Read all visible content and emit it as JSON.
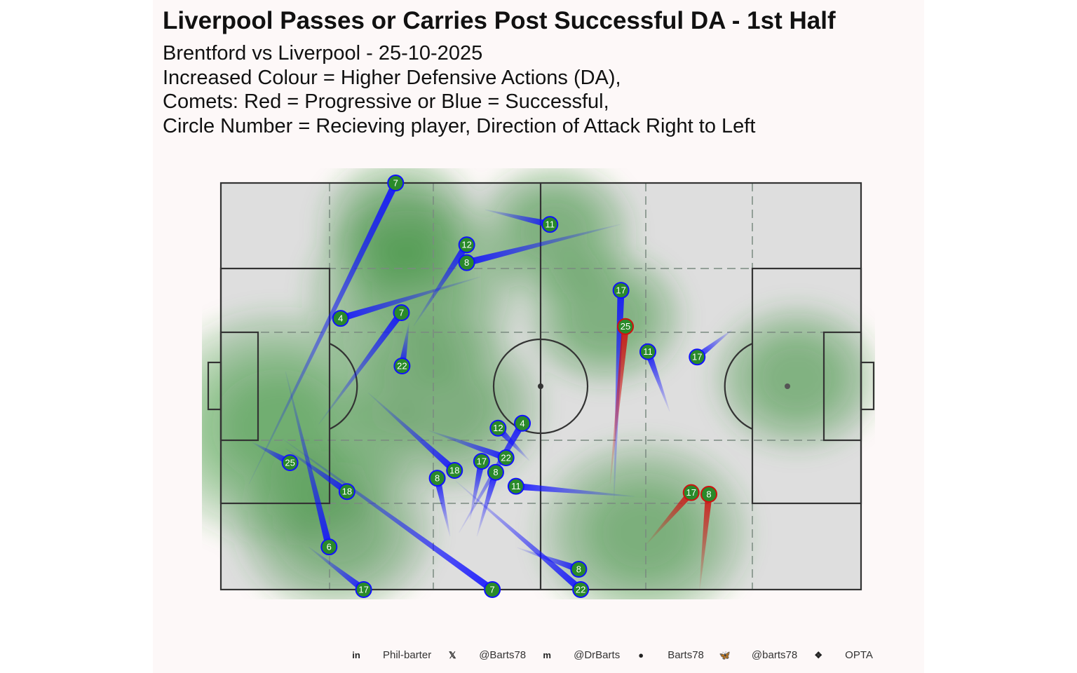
{
  "chart_data": {
    "type": "scatter",
    "title": "Liverpool Passes or Carries Post Successful DA - 1st Half",
    "subtitle": [
      "Brentford vs Liverpool - 25-10-2025",
      "Increased Colour = Higher Defensive Actions (DA),",
      "Comets: Red = Progressive or Blue = Successful,",
      "Circle Number = Recieving player, Direction of Attack Right to Left"
    ],
    "pitch": {
      "x_range": [
        0,
        100
      ],
      "y_range": [
        0,
        100
      ],
      "units": "opta"
    },
    "colors": {
      "progressive": "#d01010",
      "successful": "#1010ff",
      "density": "#2e8b2e",
      "pitch": "#dedede",
      "marker": "#2a8a2a"
    },
    "comets": [
      {
        "player": "7",
        "type": "successful",
        "start": [
          4.4,
          74
        ],
        "end": [
          27.3,
          0
        ]
      },
      {
        "player": "11",
        "type": "successful",
        "start": [
          41.3,
          6.6
        ],
        "end": [
          51.4,
          10.2
        ]
      },
      {
        "player": "12",
        "type": "successful",
        "start": [
          30.1,
          35.2
        ],
        "end": [
          38.4,
          16.7
        ]
      },
      {
        "player": "8",
        "type": "successful",
        "start": [
          62.4,
          10.2
        ],
        "end": [
          38.4,
          18.1
        ]
      },
      {
        "player": "4",
        "type": "successful",
        "start": [
          40.5,
          23.1
        ],
        "end": [
          18.7,
          33.3
        ]
      },
      {
        "player": "7",
        "type": "successful",
        "start": [
          15.3,
          59.3
        ],
        "end": [
          28.2,
          31.9
        ]
      },
      {
        "player": "22",
        "type": "successful",
        "start": [
          29.4,
          34.3
        ],
        "end": [
          28.3,
          45
        ]
      },
      {
        "player": "17",
        "type": "successful",
        "start": [
          61.4,
          78
        ],
        "end": [
          62.5,
          26.4
        ]
      },
      {
        "player": "25",
        "type": "progressive",
        "start": [
          60.8,
          74
        ],
        "end": [
          63.2,
          35.3
        ]
      },
      {
        "player": "11",
        "type": "successful",
        "start": [
          70.1,
          56.2
        ],
        "end": [
          66.7,
          41.5
        ]
      },
      {
        "player": "17",
        "type": "successful",
        "start": [
          79.8,
          36.2
        ],
        "end": [
          74.4,
          42.8
        ]
      },
      {
        "player": "22",
        "type": "successful",
        "start": [
          32.5,
          60.9
        ],
        "end": [
          44.1,
          68.1
        ]
      },
      {
        "player": "12",
        "type": "successful",
        "start": [
          48.2,
          68.3
        ],
        "end": [
          43.3,
          60.3
        ]
      },
      {
        "player": "4",
        "type": "successful",
        "start": [
          37.2,
          86
        ]
      },
      {
        "player": "17",
        "type": "successful",
        "start": [
          38.9,
          82.8
        ],
        "end": [
          41.5,
          69.3
        ]
      },
      {
        "player": "8",
        "type": "successful",
        "start": [
          40,
          86.9
        ],
        "end": [
          42.6,
          69.8
        ]
      },
      {
        "player": "18",
        "type": "successful",
        "start": [
          23,
          51.6
        ],
        "end": [
          36.5,
          70.7
        ]
      },
      {
        "player": "22",
        "type": "successful",
        "start": [
          36.7,
          73.3
        ],
        "end": [
          56.2,
          100
        ]
      },
      {
        "player": "8",
        "type": "successful",
        "start": [
          35.8,
          86.9
        ],
        "end": [
          33.8,
          72.6
        ]
      },
      {
        "player": "11",
        "type": "successful",
        "start": [
          64.6,
          77.1
        ],
        "end": [
          46.1,
          74.6
        ]
      },
      {
        "player": "8",
        "type": "successful",
        "start": [
          46.3,
          89.7
        ],
        "end": [
          55.9,
          95
        ]
      },
      {
        "player": "17",
        "type": "progressive",
        "start": [
          66.5,
          88.8
        ],
        "end": [
          73.8,
          76.2
        ]
      },
      {
        "player": "8",
        "type": "progressive",
        "start": [
          74.8,
          99.8
        ],
        "end": [
          75.9,
          76.5
        ]
      },
      {
        "player": "25",
        "type": "successful",
        "start": [
          4.9,
          63.8
        ],
        "end": [
          10.8,
          68.8
        ]
      },
      {
        "player": "18",
        "type": "successful",
        "start": [
          10.1,
          65.3
        ],
        "end": [
          19.7,
          75.9
        ]
      },
      {
        "player": "7",
        "type": "successful",
        "start": [
          9.6,
          62.9
        ],
        "end": [
          42.4,
          100
        ]
      },
      {
        "player": "6",
        "type": "successful",
        "start": [
          10.1,
          46.4
        ],
        "end": [
          16.9,
          89.5
        ]
      },
      {
        "player": "17",
        "type": "successful",
        "start": [
          13.7,
          89.5
        ],
        "end": [
          22.3,
          100
        ]
      }
    ],
    "density_hotspots": [
      [
        9,
        60,
        1.0
      ],
      [
        30,
        27,
        0.6
      ],
      [
        66,
        86,
        0.6
      ],
      [
        90,
        48,
        0.35
      ],
      [
        60,
        33,
        0.3
      ],
      [
        28,
        10,
        0.3
      ],
      [
        52,
        12,
        0.3
      ],
      [
        35,
        55,
        0.5
      ],
      [
        18,
        85,
        0.5
      ]
    ]
  },
  "footer": [
    {
      "icon": "linkedin-icon",
      "glyph": "in",
      "text": "Phil-barter"
    },
    {
      "icon": "x-icon",
      "glyph": "𝕏",
      "text": "@Barts78"
    },
    {
      "icon": "mastodon-icon",
      "glyph": "m",
      "text": "@DrBarts"
    },
    {
      "icon": "github-icon",
      "glyph": "●",
      "text": "Barts78"
    },
    {
      "icon": "bluesky-icon",
      "glyph": "🦋",
      "text": "@barts78"
    },
    {
      "icon": "dropbox-icon",
      "glyph": "❖",
      "text": "OPTA"
    }
  ]
}
